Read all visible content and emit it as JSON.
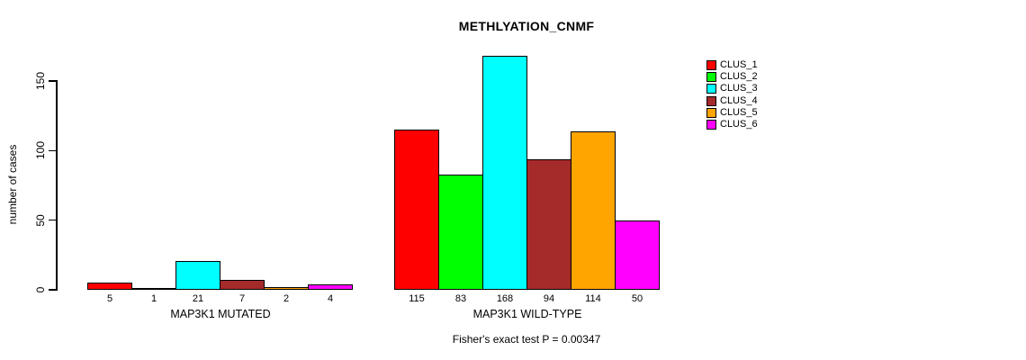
{
  "title": "METHLYATION_CNMF",
  "footer": "Fisher's exact test P = 0.00347",
  "y_axis": {
    "label": "number of cases",
    "ticks": [
      0,
      50,
      100,
      150
    ]
  },
  "legend": {
    "entries": [
      {
        "label": "CLUS_1",
        "color": "#FF0000"
      },
      {
        "label": "CLUS_2",
        "color": "#00FF00"
      },
      {
        "label": "CLUS_3",
        "color": "#00FFFF"
      },
      {
        "label": "CLUS_4",
        "color": "#A52A2A"
      },
      {
        "label": "CLUS_5",
        "color": "#FFA500"
      },
      {
        "label": "CLUS_6",
        "color": "#FF00FF"
      }
    ]
  },
  "chart_data": {
    "type": "bar",
    "title": "METHLYATION_CNMF",
    "ylabel": "number of cases",
    "ylim": [
      0,
      170
    ],
    "yticks": [
      0,
      50,
      100,
      150
    ],
    "grid": false,
    "legend_position": "right",
    "clusters": [
      "CLUS_1",
      "CLUS_2",
      "CLUS_3",
      "CLUS_4",
      "CLUS_5",
      "CLUS_6"
    ],
    "colors": [
      "#FF0000",
      "#00FF00",
      "#00FFFF",
      "#A52A2A",
      "#FFA500",
      "#FF00FF"
    ],
    "groups": [
      {
        "label": "MAP3K1 MUTATED",
        "values": [
          5,
          1,
          21,
          7,
          2,
          4
        ]
      },
      {
        "label": "MAP3K1 WILD-TYPE",
        "values": [
          115,
          83,
          168,
          94,
          114,
          50
        ]
      }
    ],
    "bar_value_labels_shown": true,
    "annotation": "Fisher's exact test P = 0.00347"
  }
}
